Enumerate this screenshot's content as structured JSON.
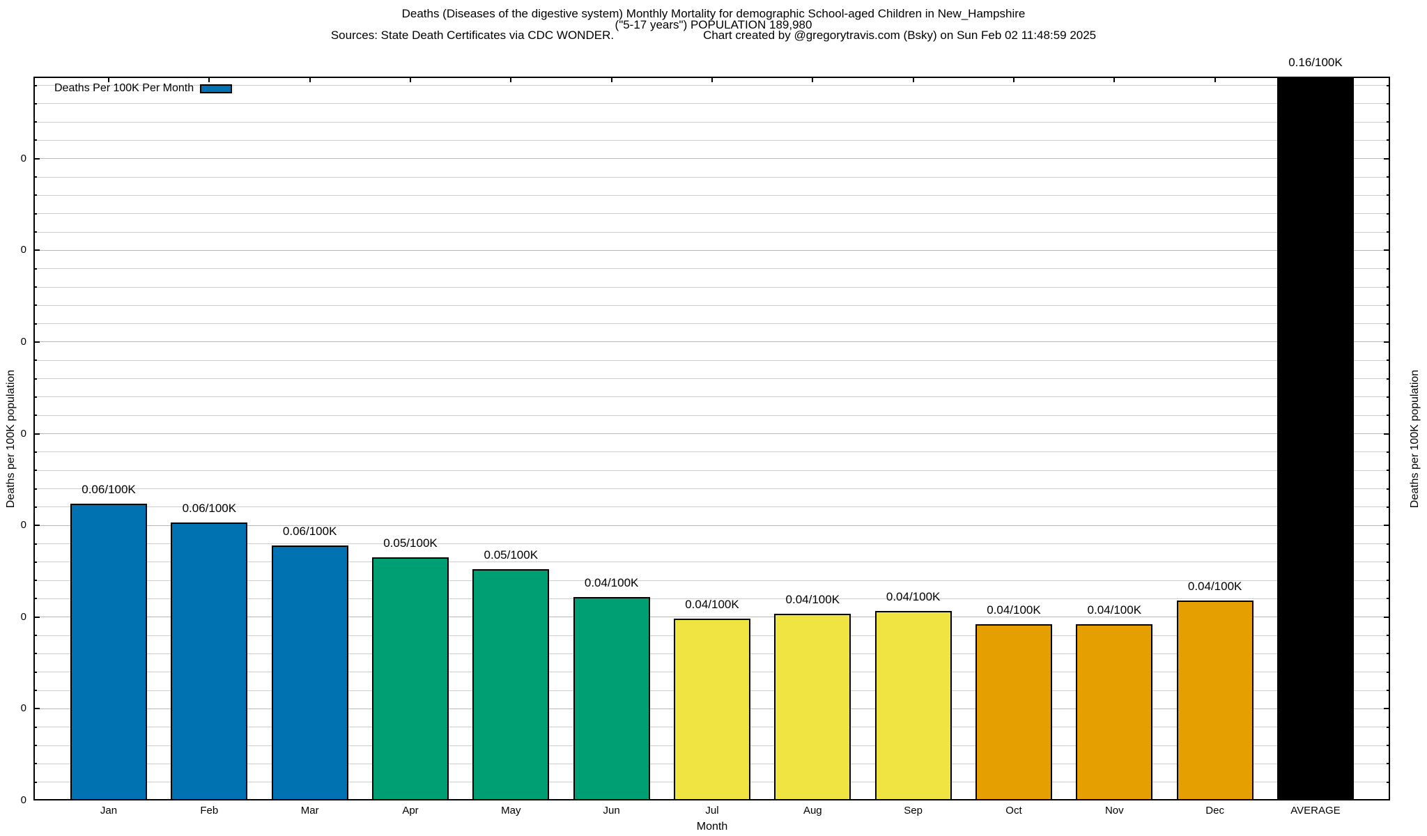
{
  "title": {
    "line1": "Deaths (Diseases of the digestive system) Monthly Mortality for demographic School-aged Children in New_Hampshire",
    "line2": "(\"5-17 years\") POPULATION 189,980",
    "sources": "Sources: State Death Certificates via CDC WONDER.",
    "credit": "Chart created by @gregorytravis.com (Bsky) on Sun Feb 02 11:48:59 2025"
  },
  "legend": {
    "label": "Deaths Per 100K Per Month",
    "swatch_color": "#0072B2"
  },
  "axes": {
    "ylabel_left": "Deaths per 100K population",
    "ylabel_right": "Deaths per 100K population",
    "xlabel": "Month",
    "ytick_label_text": "0",
    "ytick_count": 8
  },
  "chart_data": {
    "type": "bar",
    "title": "Deaths (Diseases of the digestive system) Monthly Mortality, School-aged Children (5-17 years), New Hampshire",
    "xlabel": "Month",
    "ylabel": "Deaths per 100K population",
    "categories": [
      "Jan",
      "Feb",
      "Mar",
      "Apr",
      "May",
      "Jun",
      "Jul",
      "Aug",
      "Sep",
      "Oct",
      "Nov",
      "Dec",
      "AVERAGE"
    ],
    "values": [
      0.0648,
      0.0606,
      0.0556,
      0.053,
      0.0505,
      0.0444,
      0.0397,
      0.0407,
      0.0413,
      0.0385,
      0.0385,
      0.0436,
      0.16
    ],
    "bar_labels": [
      "0.06/100K",
      "0.06/100K",
      "0.06/100K",
      "0.05/100K",
      "0.05/100K",
      "0.04/100K",
      "0.04/100K",
      "0.04/100K",
      "0.04/100K",
      "0.04/100K",
      "0.04/100K",
      "0.04/100K",
      "0.16/100K"
    ],
    "colors": [
      "#0072B2",
      "#0072B2",
      "#0072B2",
      "#009E73",
      "#009E73",
      "#009E73",
      "#F0E442",
      "#F0E442",
      "#F0E442",
      "#E69F00",
      "#E69F00",
      "#E69F00",
      "#000000"
    ],
    "legend_entry": "Deaths Per 100K Per Month",
    "legend_position": "top-left",
    "ylim": [
      0,
      0.1579
    ],
    "major_tick_step": 0.02,
    "minor_tick_step": 0.004,
    "ytick_labels_shown_as": "0",
    "grid": true,
    "bars_clipped_at_top": [
      "AVERAGE"
    ]
  }
}
